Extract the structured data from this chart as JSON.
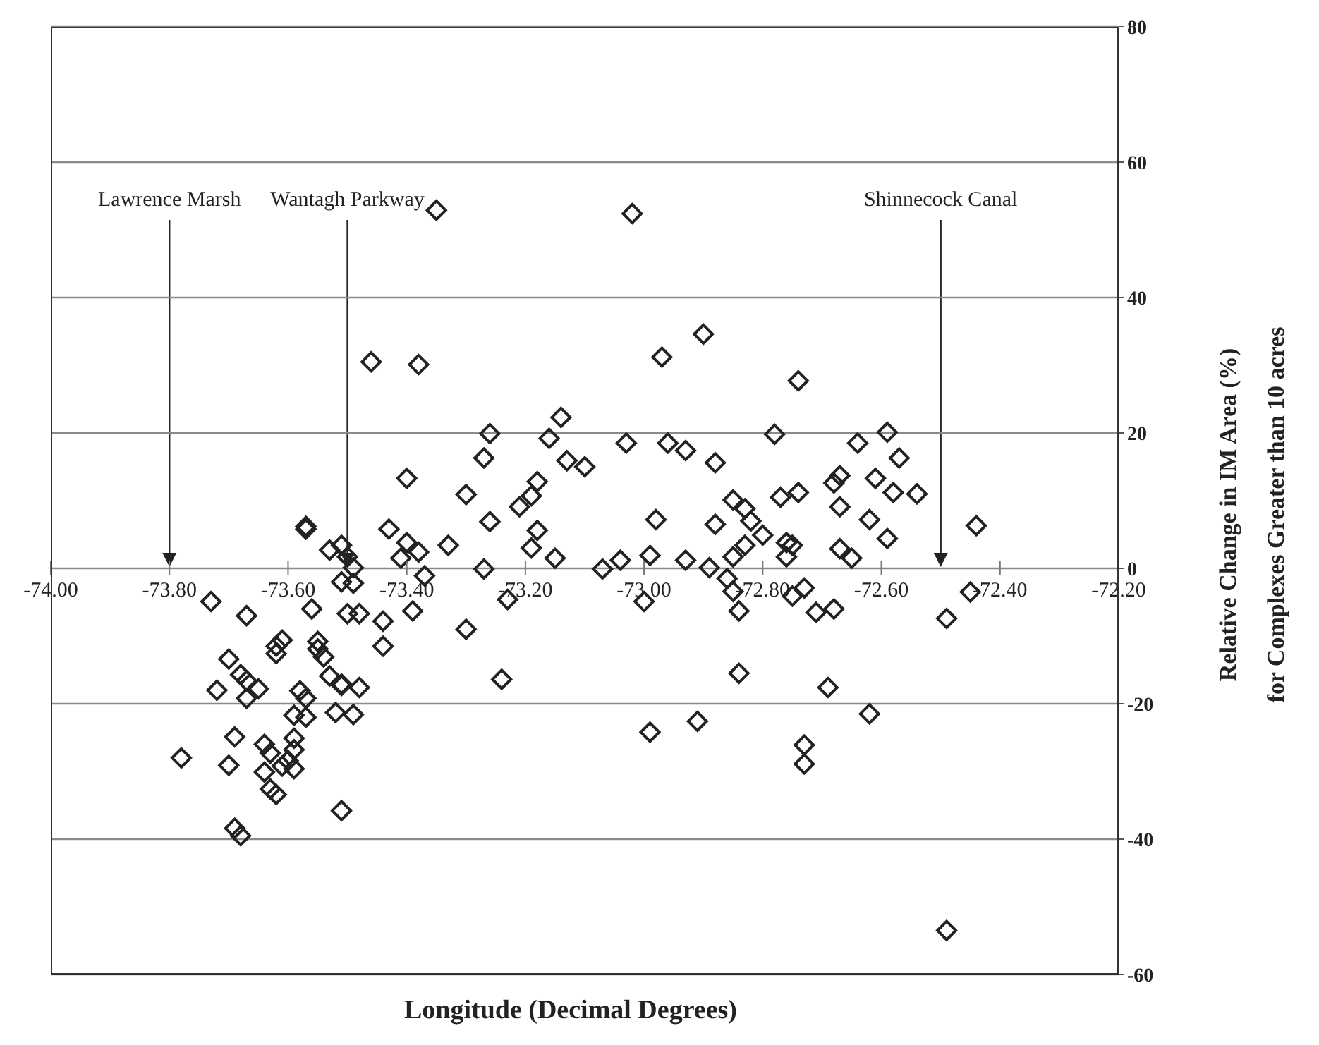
{
  "chart_data": {
    "type": "scatter",
    "xlabel": "Longitude (Decimal Degrees)",
    "ylabel": "Relative Change in IM Area (%)\nfor Complexes Greater than 10 acres",
    "xlim": [
      -74,
      -72.2
    ],
    "xticks": [
      {
        "value": -74,
        "label": "-74.00"
      },
      {
        "value": -73.8,
        "label": "-73.80"
      },
      {
        "value": -73.6,
        "label": "-73.60"
      },
      {
        "value": -73.4,
        "label": "-73.40"
      },
      {
        "value": -73.2,
        "label": "-73.20"
      },
      {
        "value": -73,
        "label": "-73.00"
      },
      {
        "value": -72.8,
        "label": "-72.80"
      },
      {
        "value": -72.6,
        "label": "-72.60"
      },
      {
        "value": -72.4,
        "label": "-72.40"
      },
      {
        "value": -72.2,
        "label": "-72.20"
      }
    ],
    "ylim": [
      -60,
      80
    ],
    "yticks": [
      -60,
      -40,
      -20,
      0,
      20,
      40,
      60,
      80
    ],
    "grid": "y",
    "marker": "diamond",
    "ref_lines": [
      {
        "axis": "x",
        "value": -73.8,
        "label": "Lawrence Marsh"
      },
      {
        "axis": "x",
        "value": -73.5,
        "label": "Wantagh Parkway"
      },
      {
        "axis": "x",
        "value": -72.5,
        "label": "Shinnecock Canal"
      }
    ],
    "series": [
      {
        "color": "#222222",
        "x": [
          -73.35,
          -73.02,
          -73.38,
          -73.46,
          -72.97,
          -72.9,
          -73.14,
          -73.26,
          -73.16,
          -73.27,
          -73.03,
          -72.96,
          -72.93,
          -72.88,
          -73.13,
          -73.1,
          -72.78,
          -73.4,
          -73.3,
          -73.18,
          -73.19,
          -73.21,
          -73.26,
          -72.98,
          -72.88,
          -72.85,
          -72.83,
          -72.82,
          -72.8,
          -72.83,
          -72.85,
          -73.33,
          -73.38,
          -73.4,
          -73.41,
          -73.19,
          -73.18,
          -73.27,
          -73.15,
          -73.07,
          -73.04,
          -72.99,
          -72.93,
          -72.89,
          -72.86,
          -73.37,
          -73.39,
          -73.3,
          -73.23,
          -73.24,
          -73,
          -72.99,
          -72.91,
          -72.84,
          -72.84,
          -72.85,
          -72.74,
          -72.64,
          -72.59,
          -72.57,
          -72.61,
          -72.67,
          -72.68,
          -72.77,
          -72.74,
          -72.58,
          -72.54,
          -72.67,
          -72.62,
          -72.59,
          -72.44,
          -72.76,
          -72.75,
          -72.76,
          -72.67,
          -72.65,
          -72.73,
          -72.45,
          -72.75,
          -72.71,
          -72.68,
          -72.69,
          -72.62,
          -72.73,
          -72.73,
          -72.49,
          -72.49,
          -73.57,
          -73.57,
          -73.43,
          -73.53,
          -73.51,
          -73.5,
          -73.49,
          -73.51,
          -73.49,
          -73.73,
          -73.67,
          -73.56,
          -73.5,
          -73.48,
          -73.44,
          -73.44,
          -73.61,
          -73.62,
          -73.62,
          -73.55,
          -73.55,
          -73.54,
          -73.7,
          -73.68,
          -73.67,
          -73.65,
          -73.67,
          -73.72,
          -73.53,
          -73.51,
          -73.51,
          -73.48,
          -73.58,
          -73.57,
          -73.59,
          -73.57,
          -73.52,
          -73.49,
          -73.69,
          -73.59,
          -73.64,
          -73.63,
          -73.78,
          -73.7,
          -73.59,
          -73.6,
          -73.59,
          -73.61,
          -73.64,
          -73.63,
          -73.62,
          -73.51,
          -73.69,
          -73.68
        ],
        "values": [
          52.9,
          52.4,
          30.1,
          30.5,
          31.2,
          34.6,
          22.3,
          19.9,
          19.2,
          16.3,
          18.5,
          18.5,
          17.4,
          15.6,
          15.9,
          15,
          19.8,
          13.3,
          10.9,
          12.8,
          10.7,
          9.1,
          6.9,
          7.2,
          6.5,
          10.1,
          8.8,
          7,
          4.9,
          3.4,
          1.7,
          3.4,
          2.4,
          3.8,
          1.5,
          3,
          5.6,
          -0.1,
          1.5,
          -0.1,
          1.2,
          1.9,
          1.2,
          0.1,
          -1.5,
          -1.1,
          -6.3,
          -9,
          -4.6,
          -16.4,
          -4.9,
          -24.2,
          -22.6,
          -6.3,
          -15.5,
          -3.4,
          27.7,
          18.5,
          20.1,
          16.3,
          13.3,
          13.7,
          12.6,
          10.5,
          11.2,
          11.2,
          11,
          9.1,
          7.2,
          4.4,
          6.3,
          3.8,
          3.4,
          1.7,
          2.9,
          1.5,
          -2.9,
          -3.5,
          -4.1,
          -6.5,
          -6,
          -17.6,
          -21.5,
          -26.1,
          -28.9,
          -7.4,
          -53.5,
          6.2,
          5.8,
          5.8,
          2.7,
          3.4,
          1.7,
          0.1,
          -2,
          -2.2,
          -4.9,
          -7,
          -6,
          -6.7,
          -6.7,
          -7.8,
          -11.5,
          -10.6,
          -11.5,
          -12.6,
          -10.8,
          -11.9,
          -13.1,
          -13.4,
          -15.7,
          -16.6,
          -17.8,
          -19.2,
          -18,
          -15.9,
          -17.1,
          -17.3,
          -17.6,
          -18.1,
          -19.2,
          -21.7,
          -22,
          -21.3,
          -21.6,
          -24.9,
          -25.1,
          -26,
          -27.3,
          -28,
          -29.1,
          -26.8,
          -28.4,
          -29.6,
          -29.2,
          -30.1,
          -32.6,
          -33.4,
          -35.8,
          -38.4,
          -39.5
        ]
      }
    ]
  }
}
